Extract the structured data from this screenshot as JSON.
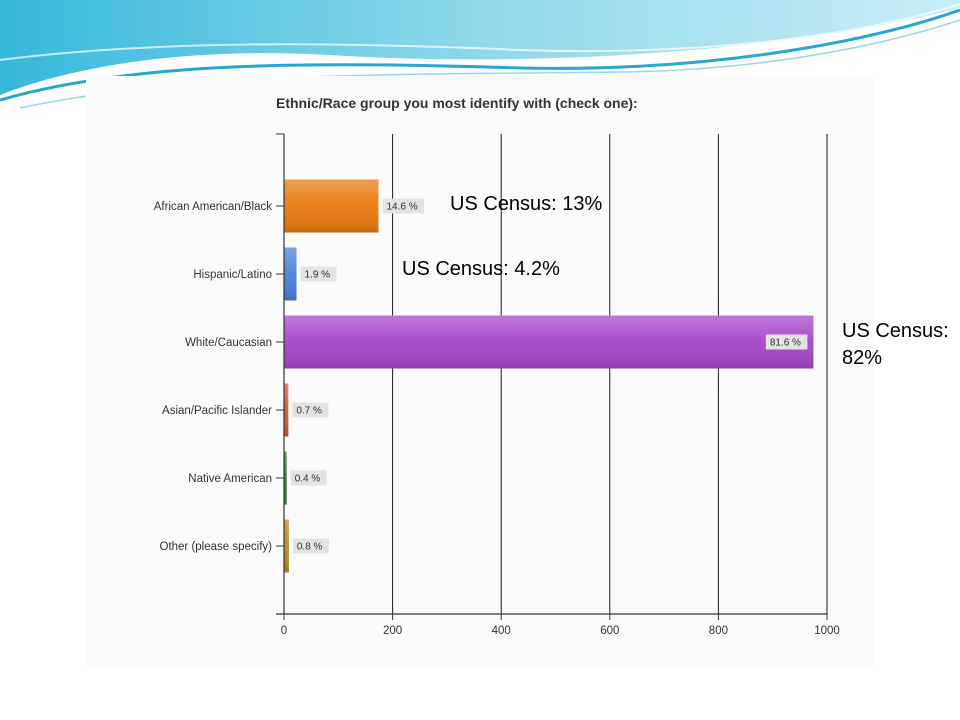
{
  "chart_data": {
    "type": "bar",
    "orientation": "horizontal",
    "title": "Ethnic/Race group you most identify with (check one):",
    "categories": [
      "African American/Black",
      "Hispanic/Latino",
      "White/Caucasian",
      "Asian/Pacific Islander",
      "Native American",
      "Other (please specify)"
    ],
    "values": [
      174,
      23,
      975,
      8,
      5,
      9
    ],
    "percent_labels": [
      "14.6 %",
      "1.9 %",
      "81.6 %",
      "0.7 %",
      "0.4 %",
      "0.8 %"
    ],
    "colors": [
      "#e8790e",
      "#4a7fd9",
      "#a544c9",
      "#d9533a",
      "#2e7d32",
      "#b88a1c"
    ],
    "xlim": [
      0,
      1000
    ],
    "x_ticks": [
      0,
      200,
      400,
      600,
      800,
      1000
    ],
    "x_tick_labels": [
      "0",
      "200",
      "400",
      "600",
      "800",
      "1000"
    ],
    "grid": "vertical"
  },
  "annotations": [
    {
      "text": "US Census: 13%"
    },
    {
      "text": "US Census: 4.2%"
    },
    {
      "text": "US Census: 82%"
    }
  ]
}
